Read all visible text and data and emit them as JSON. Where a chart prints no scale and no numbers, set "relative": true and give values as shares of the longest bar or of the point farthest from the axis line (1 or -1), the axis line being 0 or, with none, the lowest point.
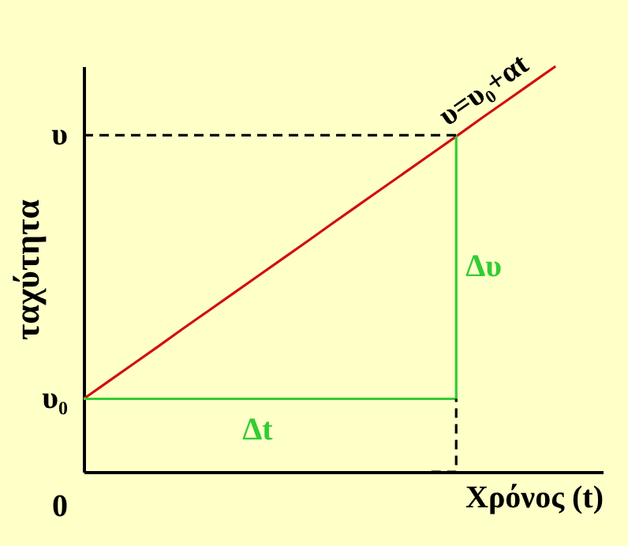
{
  "chart_data": {
    "type": "line",
    "relative": true,
    "xlabel": "Χρόνος (t)",
    "ylabel": "ταχύτητα",
    "marker": "none",
    "categories": [
      null,
      null,
      null,
      null,
      null,
      null,
      null,
      null,
      null,
      null,
      null,
      null,
      null,
      null,
      null,
      null,
      null,
      null,
      null,
      null
    ],
    "series": [
      {
        "name": "υ=υ₀+αt",
        "color": "#d01010",
        "values": [
          0.18,
          0.223,
          0.266,
          0.309,
          0.353,
          0.396,
          0.439,
          0.482,
          0.525,
          0.568,
          0.612,
          0.655,
          0.698,
          0.741,
          0.784,
          0.827,
          0.871,
          0.914,
          0.957,
          1
        ]
      },
      {
        "type": "step",
        "color": "#33cc33",
        "values": [
          0.18,
          0.18,
          0.18,
          0.18,
          0.18,
          0.18,
          0.18,
          0.18,
          0.18,
          0.18,
          0.18,
          0.18,
          0.18,
          0.18,
          0.18,
          0.83,
          null,
          null,
          null,
          null
        ]
      },
      {
        "color": "#000000",
        "line_style": "dashed",
        "values": [
          0.83,
          0.83,
          0.83,
          0.83,
          0.83,
          0.83,
          0.83,
          0.83,
          0.83,
          0.83,
          0.83,
          0.83,
          0.83,
          0.83,
          0.83,
          0.83,
          null,
          null,
          null,
          null
        ]
      },
      {
        "type": "step",
        "color": "#000000",
        "line_style": "dashed",
        "values": [
          null,
          null,
          null,
          null,
          null,
          null,
          null,
          null,
          null,
          null,
          null,
          null,
          null,
          null,
          0,
          0.18,
          null,
          null,
          null,
          null
        ]
      }
    ],
    "annotations": [
      "υ",
      "υ₀",
      "0",
      "Δt",
      "Δυ"
    ]
  }
}
